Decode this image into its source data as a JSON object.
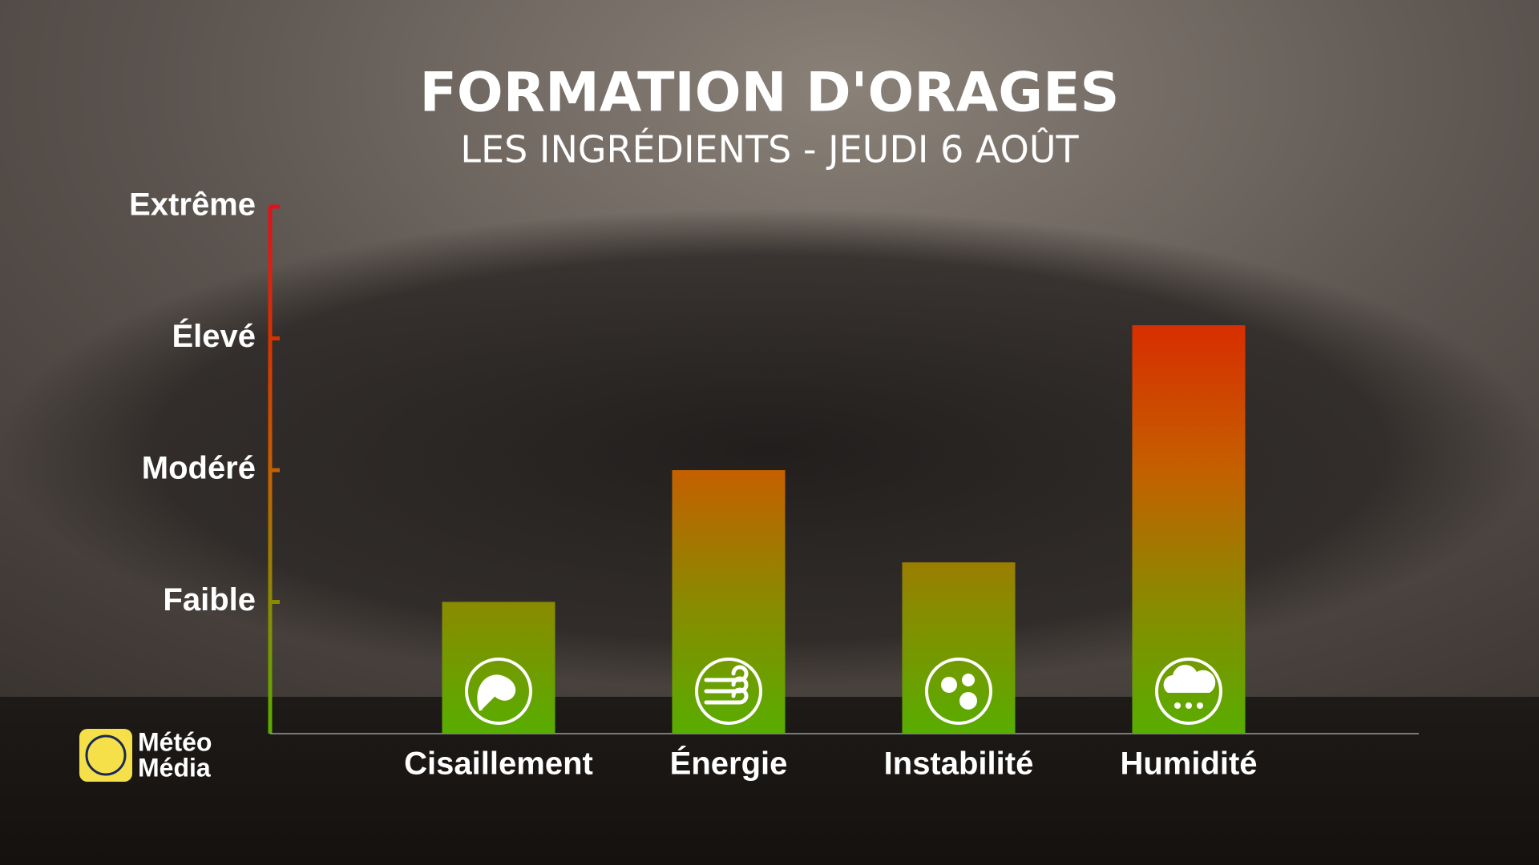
{
  "chart_data": {
    "type": "bar",
    "title": "FORMATION D'ORAGES",
    "subtitle": "LES INGRÉDIENTS - JEUDI 6 AOÛT",
    "categories": [
      "Cisaillement",
      "Énergie",
      "Instabilité",
      "Humidité"
    ],
    "values": [
      1,
      2,
      1.3,
      3.1
    ],
    "ylim": [
      0,
      4
    ],
    "yticks": [
      {
        "value": 1,
        "label": "Faible"
      },
      {
        "value": 2,
        "label": "Modéré"
      },
      {
        "value": 3,
        "label": "Élevé"
      },
      {
        "value": 4,
        "label": "Extrême"
      }
    ],
    "gradient": [
      "#58ad00",
      "#8a8a00",
      "#c46000",
      "#d63200",
      "#e0101c"
    ]
  },
  "logo": [
    "Météo",
    "Média"
  ]
}
